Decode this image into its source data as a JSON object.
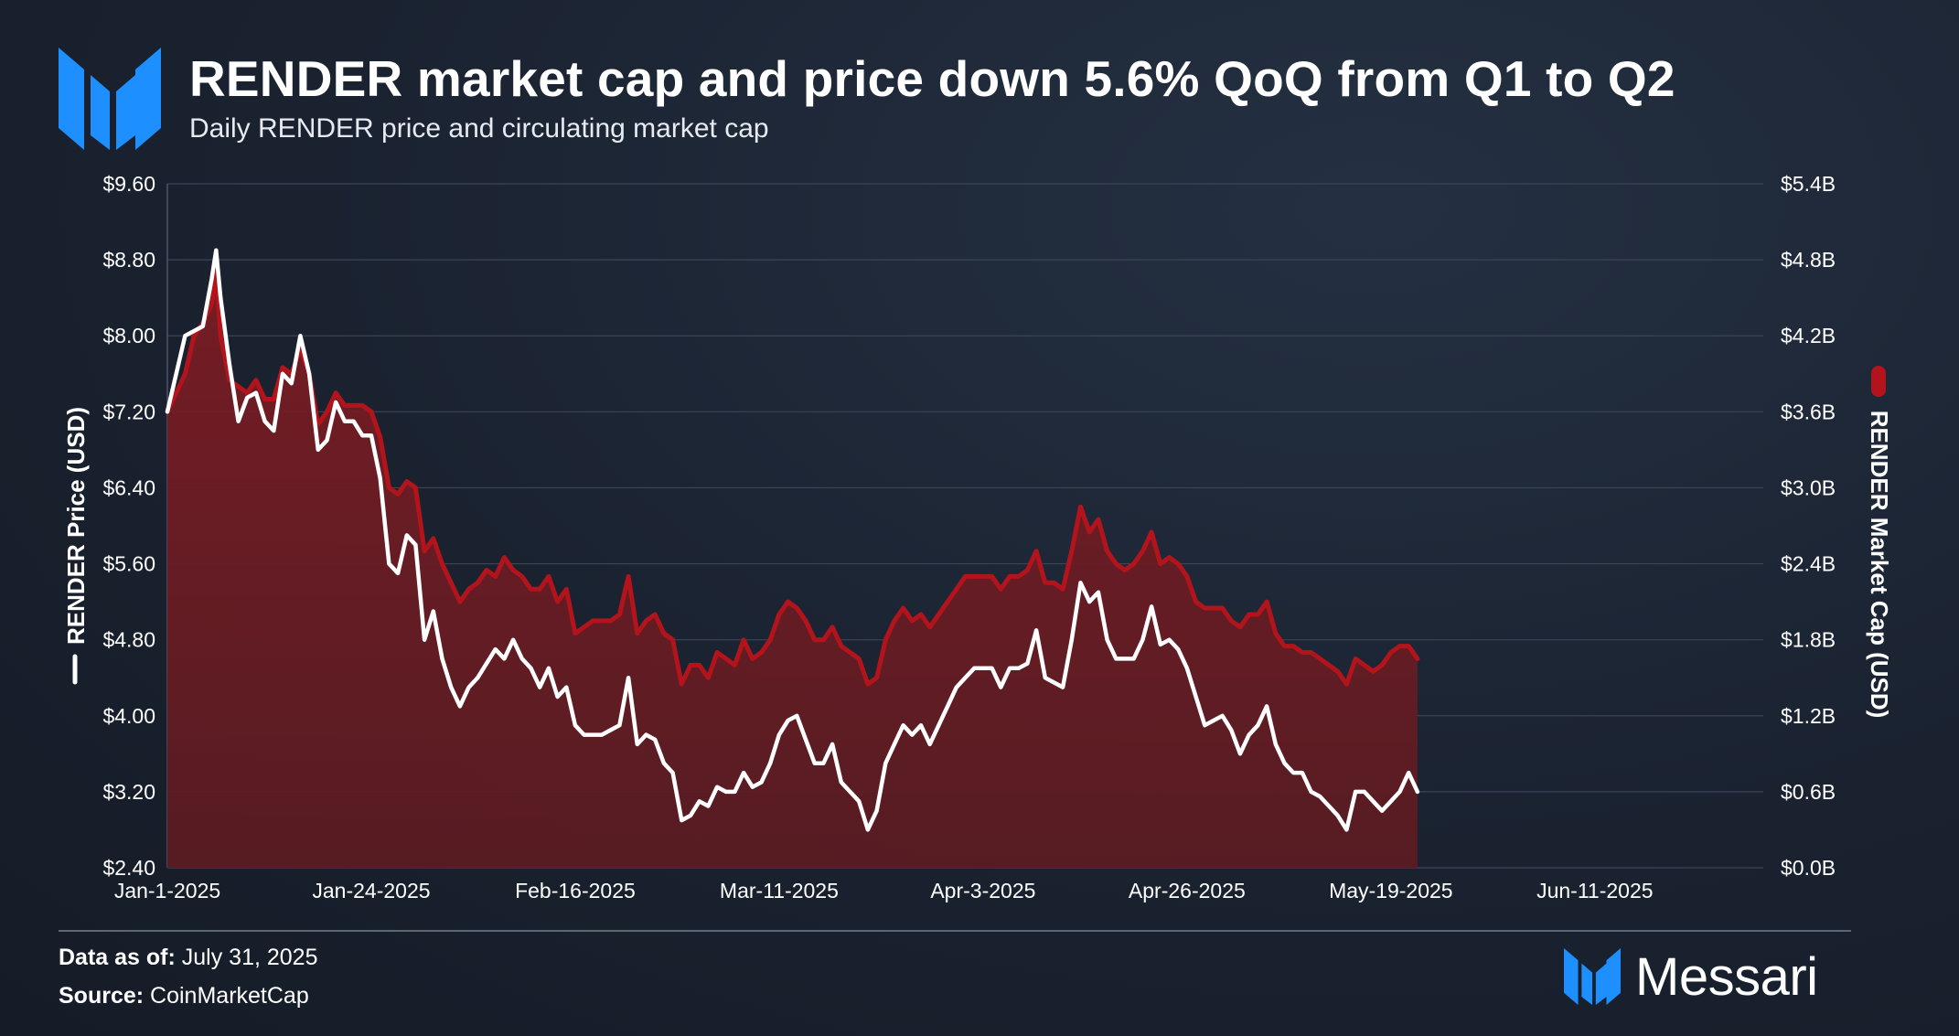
{
  "header": {
    "title": "RENDER market cap and price down 5.6% QoQ from Q1 to Q2",
    "subtitle": "Daily RENDER price and circulating market cap"
  },
  "footer": {
    "data_as_of_label": "Data as of:",
    "data_as_of_value": "July 31, 2025",
    "source_label": "Source:",
    "source_value": "CoinMarketCap",
    "brand": "Messari"
  },
  "colors": {
    "price_line": "#ffffff",
    "market_cap_fill": "#6e1c23",
    "market_cap_stroke": "#b3141b",
    "grid": "#3a4556",
    "brand_blue": "#1e8fff"
  },
  "icons": [
    "messari-logo-icon"
  ],
  "chart_data": {
    "type": "line+area",
    "title": "RENDER market cap and price down 5.6% QoQ from Q1 to Q2",
    "x_tick_labels": [
      "Jan-1-2025",
      "Jan-24-2025",
      "Feb-16-2025",
      "Mar-11-2025",
      "Apr-3-2025",
      "Apr-26-2025",
      "May-19-2025",
      "Jun-11-2025"
    ],
    "x_range_days": [
      0,
      180
    ],
    "y_left": {
      "label": "RENDER Price (USD)",
      "range": [
        2.4,
        9.6
      ],
      "tick_labels": [
        "$9.60",
        "$8.80",
        "$8.00",
        "$7.20",
        "$6.40",
        "$5.60",
        "$4.80",
        "$4.00",
        "$3.20",
        "$2.40"
      ]
    },
    "y_right": {
      "label": "RENDER Market Cap (USD)",
      "range": [
        0.0,
        5.4
      ],
      "tick_labels": [
        "$5.4B",
        "$4.8B",
        "$4.2B",
        "$3.6B",
        "$3.0B",
        "$2.4B",
        "$1.8B",
        "$1.2B",
        "$0.6B",
        "$0.0B"
      ]
    },
    "legend": {
      "position": "vertical-sides",
      "left_entry": "RENDER Price (USD)",
      "right_entry": "RENDER Market Cap (USD)"
    },
    "series": [
      {
        "name": "RENDER Price (USD)",
        "axis": "left",
        "style": "line",
        "points": [
          [
            0,
            7.2
          ],
          [
            2,
            8.0
          ],
          [
            3,
            8.05
          ],
          [
            4,
            8.1
          ],
          [
            5,
            8.6
          ],
          [
            5.5,
            8.9
          ],
          [
            6,
            8.4
          ],
          [
            7,
            7.7
          ],
          [
            8,
            7.1
          ],
          [
            9,
            7.35
          ],
          [
            10,
            7.4
          ],
          [
            11,
            7.1
          ],
          [
            12,
            7.0
          ],
          [
            13,
            7.6
          ],
          [
            14,
            7.5
          ],
          [
            15,
            8.0
          ],
          [
            16,
            7.6
          ],
          [
            17,
            6.8
          ],
          [
            18,
            6.9
          ],
          [
            19,
            7.3
          ],
          [
            20,
            7.1
          ],
          [
            21,
            7.1
          ],
          [
            22,
            6.95
          ],
          [
            23,
            6.95
          ],
          [
            24,
            6.5
          ],
          [
            25,
            5.6
          ],
          [
            26,
            5.5
          ],
          [
            27,
            5.9
          ],
          [
            28,
            5.8
          ],
          [
            29,
            4.8
          ],
          [
            30,
            5.1
          ],
          [
            31,
            4.6
          ],
          [
            32,
            4.3
          ],
          [
            33,
            4.1
          ],
          [
            34,
            4.3
          ],
          [
            35,
            4.4
          ],
          [
            36,
            4.55
          ],
          [
            37,
            4.7
          ],
          [
            38,
            4.6
          ],
          [
            39,
            4.8
          ],
          [
            40,
            4.6
          ],
          [
            41,
            4.5
          ],
          [
            42,
            4.3
          ],
          [
            43,
            4.5
          ],
          [
            44,
            4.2
          ],
          [
            45,
            4.3
          ],
          [
            46,
            3.9
          ],
          [
            47,
            3.8
          ],
          [
            48,
            3.8
          ],
          [
            49,
            3.8
          ],
          [
            50,
            3.85
          ],
          [
            51,
            3.9
          ],
          [
            52,
            4.4
          ],
          [
            53,
            3.7
          ],
          [
            54,
            3.8
          ],
          [
            55,
            3.75
          ],
          [
            56,
            3.5
          ],
          [
            57,
            3.4
          ],
          [
            58,
            2.9
          ],
          [
            59,
            2.95
          ],
          [
            60,
            3.1
          ],
          [
            61,
            3.05
          ],
          [
            62,
            3.25
          ],
          [
            63,
            3.2
          ],
          [
            64,
            3.2
          ],
          [
            65,
            3.4
          ],
          [
            66,
            3.25
          ],
          [
            67,
            3.3
          ],
          [
            68,
            3.5
          ],
          [
            69,
            3.8
          ],
          [
            70,
            3.95
          ],
          [
            71,
            4.0
          ],
          [
            72,
            3.75
          ],
          [
            73,
            3.5
          ],
          [
            74,
            3.5
          ],
          [
            75,
            3.7
          ],
          [
            76,
            3.3
          ],
          [
            77,
            3.2
          ],
          [
            78,
            3.1
          ],
          [
            79,
            2.8
          ],
          [
            80,
            3.0
          ],
          [
            81,
            3.5
          ],
          [
            82,
            3.7
          ],
          [
            83,
            3.9
          ],
          [
            84,
            3.8
          ],
          [
            85,
            3.9
          ],
          [
            86,
            3.7
          ],
          [
            87,
            3.9
          ],
          [
            88,
            4.1
          ],
          [
            89,
            4.3
          ],
          [
            90,
            4.4
          ],
          [
            91,
            4.5
          ],
          [
            92,
            4.5
          ],
          [
            93,
            4.5
          ],
          [
            94,
            4.3
          ],
          [
            95,
            4.5
          ],
          [
            96,
            4.5
          ],
          [
            97,
            4.55
          ],
          [
            98,
            4.9
          ],
          [
            99,
            4.4
          ],
          [
            100,
            4.35
          ],
          [
            101,
            4.3
          ],
          [
            102,
            4.8
          ],
          [
            103,
            5.4
          ],
          [
            104,
            5.2
          ],
          [
            105,
            5.3
          ],
          [
            106,
            4.8
          ],
          [
            107,
            4.6
          ],
          [
            108,
            4.6
          ],
          [
            109,
            4.6
          ],
          [
            110,
            4.8
          ],
          [
            111,
            5.15
          ],
          [
            112,
            4.75
          ],
          [
            113,
            4.8
          ],
          [
            114,
            4.7
          ],
          [
            115,
            4.5
          ],
          [
            116,
            4.2
          ],
          [
            117,
            3.9
          ],
          [
            118,
            3.95
          ],
          [
            119,
            4.0
          ],
          [
            120,
            3.85
          ],
          [
            121,
            3.6
          ],
          [
            122,
            3.8
          ],
          [
            123,
            3.9
          ],
          [
            124,
            4.1
          ],
          [
            125,
            3.7
          ],
          [
            126,
            3.5
          ],
          [
            127,
            3.4
          ],
          [
            128,
            3.4
          ],
          [
            129,
            3.2
          ],
          [
            130,
            3.15
          ],
          [
            131,
            3.05
          ],
          [
            132,
            2.95
          ],
          [
            133,
            2.8
          ],
          [
            134,
            3.2
          ],
          [
            135,
            3.2
          ],
          [
            136,
            3.1
          ],
          [
            137,
            3.0
          ],
          [
            138,
            3.1
          ],
          [
            139,
            3.2
          ],
          [
            140,
            3.4
          ],
          [
            141,
            3.2
          ]
        ]
      },
      {
        "name": "RENDER Market Cap (USD)",
        "axis": "right",
        "style": "area",
        "unit": "B",
        "points": [
          [
            0,
            3.6
          ],
          [
            2,
            3.9
          ],
          [
            3,
            4.2
          ],
          [
            4,
            4.3
          ],
          [
            5,
            4.45
          ],
          [
            5.5,
            4.7
          ],
          [
            6,
            4.2
          ],
          [
            7,
            3.85
          ],
          [
            8,
            3.8
          ],
          [
            9,
            3.75
          ],
          [
            10,
            3.85
          ],
          [
            11,
            3.7
          ],
          [
            12,
            3.7
          ],
          [
            13,
            3.95
          ],
          [
            14,
            3.9
          ],
          [
            15,
            4.1
          ],
          [
            16,
            3.9
          ],
          [
            17,
            3.5
          ],
          [
            18,
            3.6
          ],
          [
            19,
            3.75
          ],
          [
            20,
            3.65
          ],
          [
            21,
            3.65
          ],
          [
            22,
            3.65
          ],
          [
            23,
            3.6
          ],
          [
            24,
            3.4
          ],
          [
            25,
            3.0
          ],
          [
            26,
            2.95
          ],
          [
            27,
            3.05
          ],
          [
            28,
            3.0
          ],
          [
            29,
            2.5
          ],
          [
            30,
            2.6
          ],
          [
            31,
            2.4
          ],
          [
            32,
            2.25
          ],
          [
            33,
            2.1
          ],
          [
            34,
            2.2
          ],
          [
            35,
            2.25
          ],
          [
            36,
            2.35
          ],
          [
            37,
            2.3
          ],
          [
            38,
            2.45
          ],
          [
            39,
            2.35
          ],
          [
            40,
            2.3
          ],
          [
            41,
            2.2
          ],
          [
            42,
            2.2
          ],
          [
            43,
            2.3
          ],
          [
            44,
            2.1
          ],
          [
            45,
            2.2
          ],
          [
            46,
            1.85
          ],
          [
            47,
            1.9
          ],
          [
            48,
            1.95
          ],
          [
            49,
            1.95
          ],
          [
            50,
            1.95
          ],
          [
            51,
            2.0
          ],
          [
            52,
            2.3
          ],
          [
            53,
            1.85
          ],
          [
            54,
            1.95
          ],
          [
            55,
            2.0
          ],
          [
            56,
            1.85
          ],
          [
            57,
            1.8
          ],
          [
            58,
            1.45
          ],
          [
            59,
            1.6
          ],
          [
            60,
            1.6
          ],
          [
            61,
            1.5
          ],
          [
            62,
            1.7
          ],
          [
            63,
            1.65
          ],
          [
            64,
            1.6
          ],
          [
            65,
            1.8
          ],
          [
            66,
            1.65
          ],
          [
            67,
            1.7
          ],
          [
            68,
            1.8
          ],
          [
            69,
            2.0
          ],
          [
            70,
            2.1
          ],
          [
            71,
            2.05
          ],
          [
            72,
            1.95
          ],
          [
            73,
            1.8
          ],
          [
            74,
            1.8
          ],
          [
            75,
            1.9
          ],
          [
            76,
            1.75
          ],
          [
            77,
            1.7
          ],
          [
            78,
            1.65
          ],
          [
            79,
            1.45
          ],
          [
            80,
            1.5
          ],
          [
            81,
            1.8
          ],
          [
            82,
            1.95
          ],
          [
            83,
            2.05
          ],
          [
            84,
            1.95
          ],
          [
            85,
            2.0
          ],
          [
            86,
            1.9
          ],
          [
            87,
            2.0
          ],
          [
            88,
            2.1
          ],
          [
            89,
            2.2
          ],
          [
            90,
            2.3
          ],
          [
            91,
            2.3
          ],
          [
            92,
            2.3
          ],
          [
            93,
            2.3
          ],
          [
            94,
            2.2
          ],
          [
            95,
            2.3
          ],
          [
            96,
            2.3
          ],
          [
            97,
            2.35
          ],
          [
            98,
            2.5
          ],
          [
            99,
            2.25
          ],
          [
            100,
            2.25
          ],
          [
            101,
            2.2
          ],
          [
            102,
            2.5
          ],
          [
            103,
            2.85
          ],
          [
            104,
            2.65
          ],
          [
            105,
            2.75
          ],
          [
            106,
            2.5
          ],
          [
            107,
            2.4
          ],
          [
            108,
            2.35
          ],
          [
            109,
            2.4
          ],
          [
            110,
            2.5
          ],
          [
            111,
            2.65
          ],
          [
            112,
            2.4
          ],
          [
            113,
            2.45
          ],
          [
            114,
            2.4
          ],
          [
            115,
            2.3
          ],
          [
            116,
            2.1
          ],
          [
            117,
            2.05
          ],
          [
            118,
            2.05
          ],
          [
            119,
            2.05
          ],
          [
            120,
            1.95
          ],
          [
            121,
            1.9
          ],
          [
            122,
            2.0
          ],
          [
            123,
            2.0
          ],
          [
            124,
            2.1
          ],
          [
            125,
            1.85
          ],
          [
            126,
            1.75
          ],
          [
            127,
            1.75
          ],
          [
            128,
            1.7
          ],
          [
            129,
            1.7
          ],
          [
            130,
            1.65
          ],
          [
            131,
            1.6
          ],
          [
            132,
            1.55
          ],
          [
            133,
            1.45
          ],
          [
            134,
            1.65
          ],
          [
            135,
            1.6
          ],
          [
            136,
            1.55
          ],
          [
            137,
            1.6
          ],
          [
            138,
            1.7
          ],
          [
            139,
            1.75
          ],
          [
            140,
            1.75
          ],
          [
            141,
            1.65
          ]
        ]
      }
    ]
  }
}
